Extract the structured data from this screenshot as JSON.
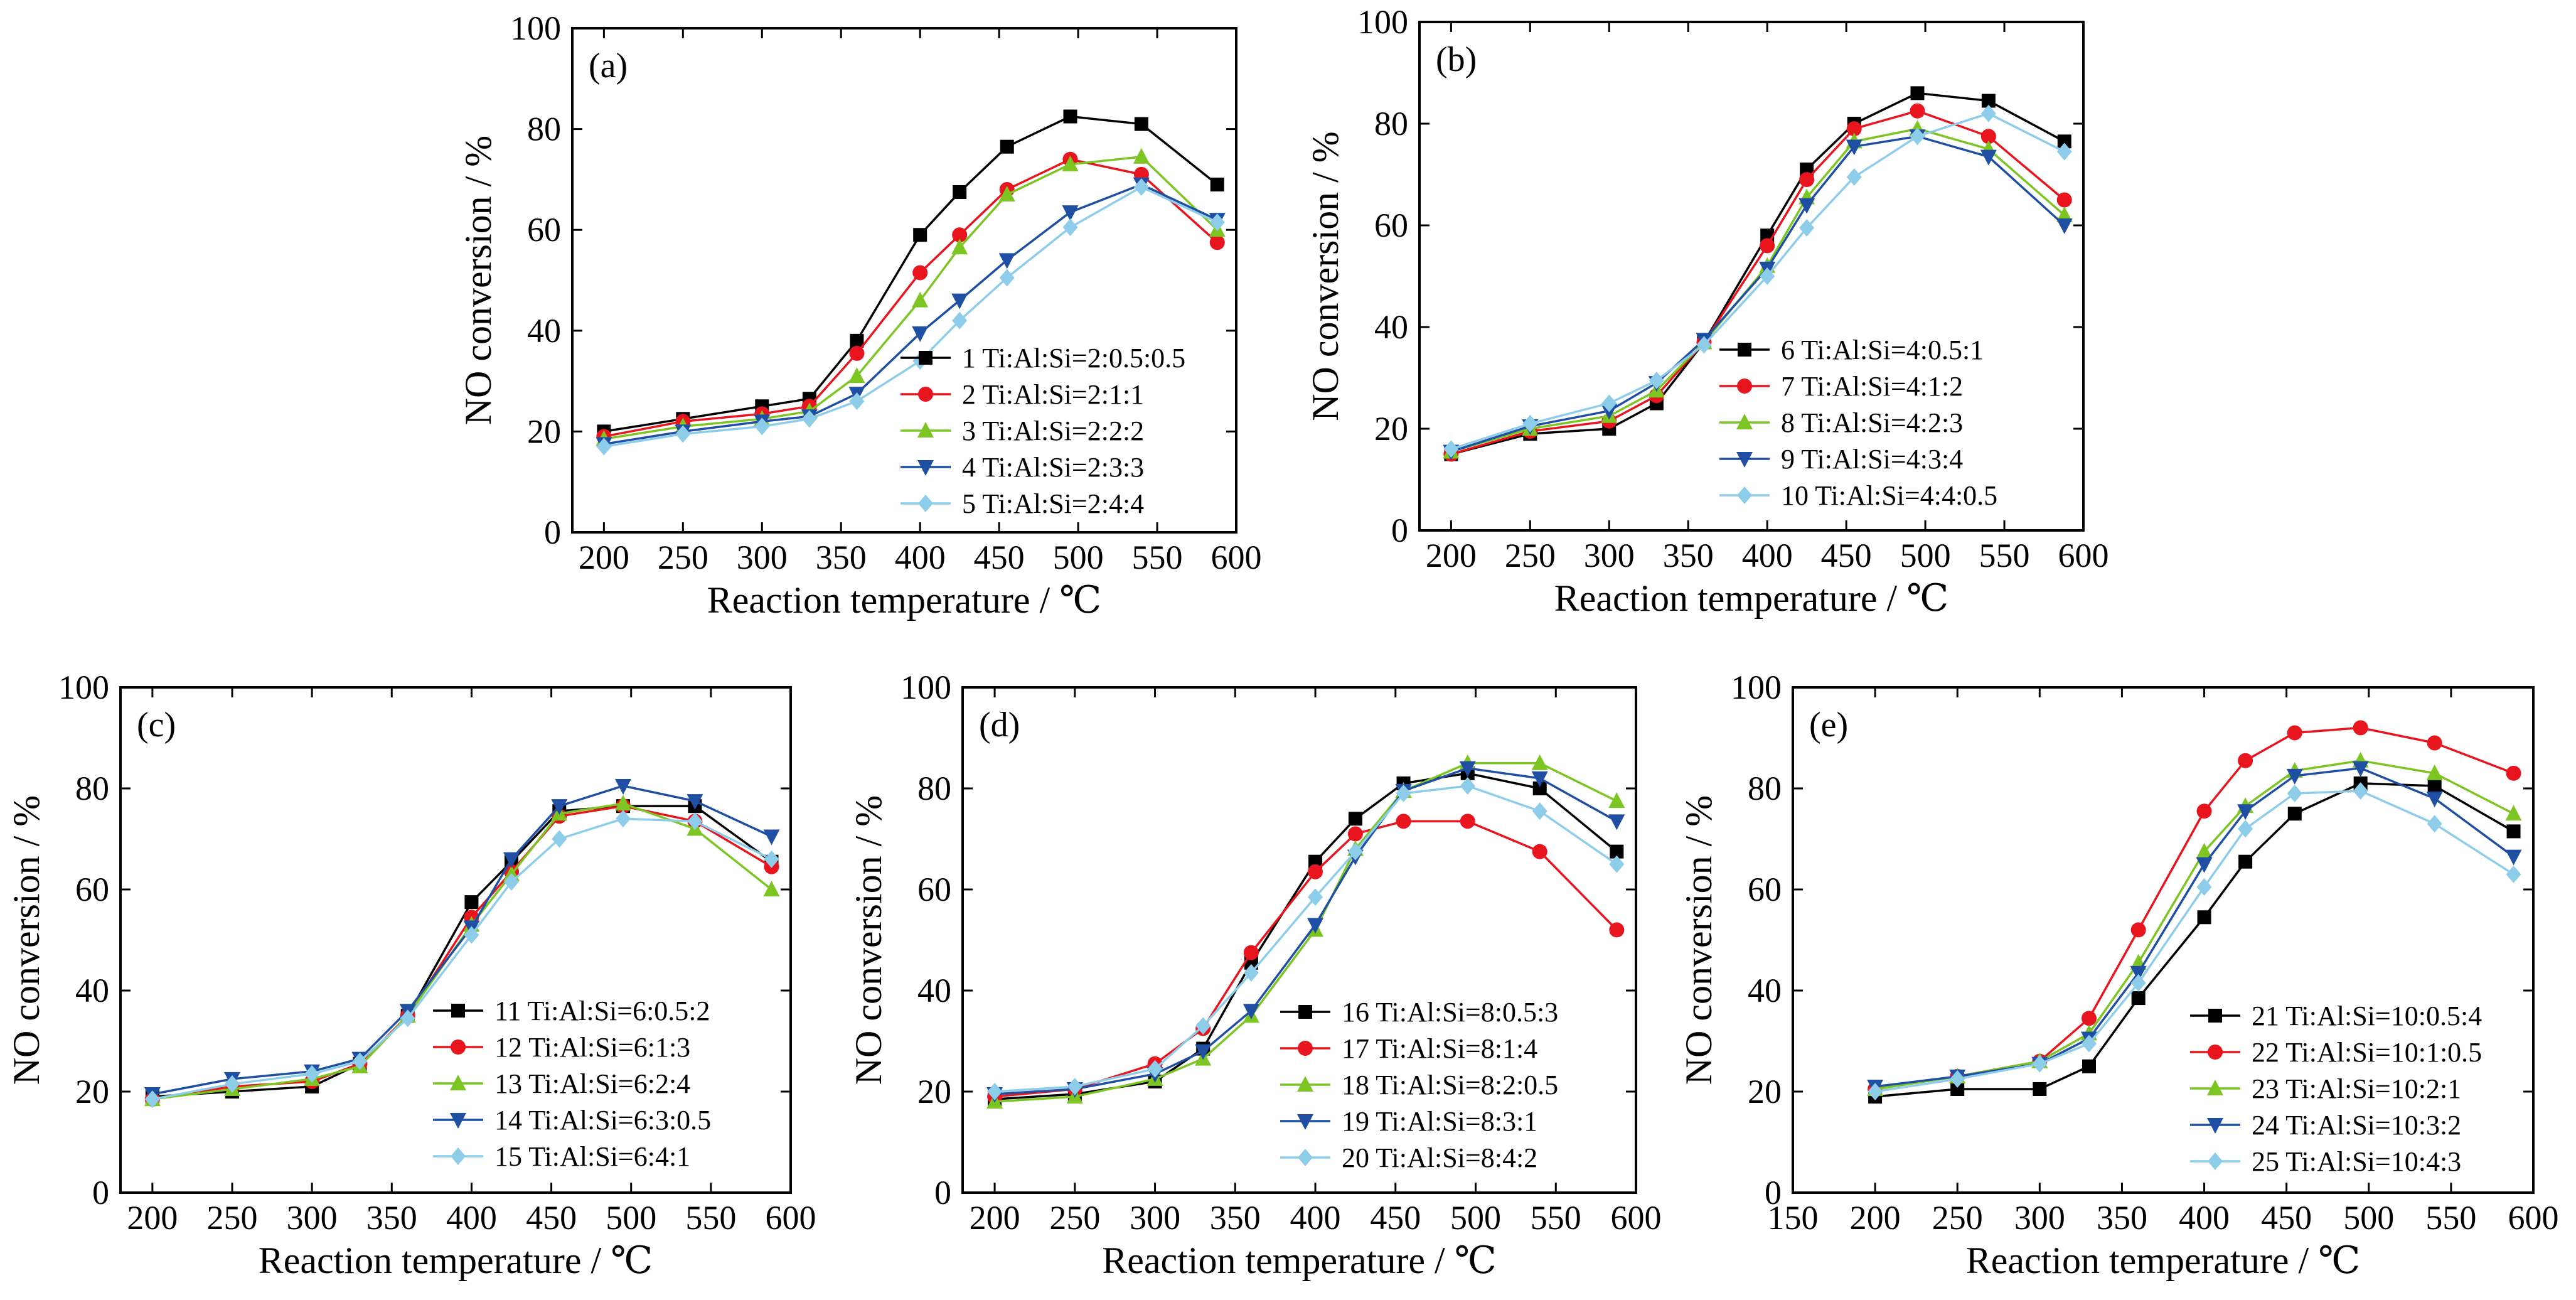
{
  "figure": {
    "panel_label_visible": true
  },
  "chart_data": [
    {
      "panel_tag": "(a)",
      "type": "line",
      "xlabel": "Reaction temperature / ℃",
      "ylabel": "NO conversion / %",
      "xlim": [
        180,
        600
      ],
      "ylim": [
        0,
        100
      ],
      "xticks": [
        200,
        250,
        300,
        350,
        400,
        450,
        500,
        550,
        600
      ],
      "yticks": [
        0,
        20,
        40,
        60,
        80,
        100
      ],
      "legend_position": "middle-right",
      "series": [
        {
          "name": "1 Ti:Al:Si=2:0.5:0.5",
          "color": "#000000",
          "marker": "square",
          "x": [
            200,
            250,
            300,
            330,
            360,
            400,
            425,
            455,
            495,
            540,
            588
          ],
          "y": [
            20.0,
            22.5,
            25.0,
            26.5,
            38.0,
            59.0,
            67.5,
            76.5,
            82.5,
            81.0,
            69.0
          ]
        },
        {
          "name": "2 Ti:Al:Si=2:1:1",
          "color": "#e8141e",
          "marker": "circle",
          "x": [
            200,
            250,
            300,
            330,
            360,
            400,
            425,
            455,
            495,
            540,
            588
          ],
          "y": [
            19.0,
            22.0,
            23.5,
            25.0,
            35.5,
            51.5,
            59.0,
            68.0,
            74.0,
            71.0,
            57.5
          ]
        },
        {
          "name": "3 Ti:Al:Si=2:2:2",
          "color": "#7cc522",
          "marker": "triangle-up",
          "x": [
            200,
            250,
            300,
            330,
            360,
            400,
            425,
            455,
            495,
            540,
            588
          ],
          "y": [
            18.5,
            21.0,
            22.5,
            24.0,
            31.0,
            46.0,
            56.5,
            67.0,
            73.0,
            74.5,
            60.0
          ]
        },
        {
          "name": "4 Ti:Al:Si=2:3:3",
          "color": "#1f4fa3",
          "marker": "triangle-down",
          "x": [
            200,
            250,
            300,
            330,
            360,
            400,
            425,
            455,
            495,
            540,
            588
          ],
          "y": [
            17.5,
            20.0,
            22.0,
            23.0,
            27.5,
            39.5,
            46.0,
            54.0,
            63.5,
            69.0,
            62.0
          ]
        },
        {
          "name": "5 Ti:Al:Si=2:4:4",
          "color": "#8ecdea",
          "marker": "diamond",
          "x": [
            200,
            250,
            300,
            330,
            360,
            400,
            425,
            455,
            495,
            540,
            588
          ],
          "y": [
            17.0,
            19.5,
            21.0,
            22.5,
            26.0,
            34.0,
            42.0,
            50.5,
            60.5,
            68.5,
            61.5
          ]
        }
      ]
    },
    {
      "panel_tag": "(b)",
      "type": "line",
      "xlabel": "Reaction temperature / ℃",
      "ylabel": "NO conversion / %",
      "xlim": [
        180,
        600
      ],
      "ylim": [
        0,
        100
      ],
      "xticks": [
        200,
        250,
        300,
        350,
        400,
        450,
        500,
        550,
        600
      ],
      "yticks": [
        0,
        20,
        40,
        60,
        80,
        100
      ],
      "legend_position": "bottom-right",
      "series": [
        {
          "name": "6 Ti:Al:Si=4:0.5:1",
          "color": "#000000",
          "marker": "square",
          "x": [
            200,
            250,
            300,
            330,
            360,
            400,
            425,
            455,
            495,
            540,
            588
          ],
          "y": [
            15.0,
            19.0,
            20.0,
            25.0,
            37.0,
            58.0,
            71.0,
            80.0,
            86.0,
            84.5,
            76.5
          ]
        },
        {
          "name": "7 Ti:Al:Si=4:1:2",
          "color": "#e8141e",
          "marker": "circle",
          "x": [
            200,
            250,
            300,
            330,
            360,
            400,
            425,
            455,
            495,
            540,
            588
          ],
          "y": [
            15.0,
            19.5,
            21.5,
            26.5,
            37.0,
            56.0,
            69.0,
            79.0,
            82.5,
            77.5,
            65.0
          ]
        },
        {
          "name": "8 Ti:Al:Si=4:2:3",
          "color": "#7cc522",
          "marker": "triangle-up",
          "x": [
            200,
            250,
            300,
            330,
            360,
            400,
            425,
            455,
            495,
            540,
            588
          ],
          "y": [
            15.5,
            20.0,
            22.5,
            27.5,
            37.0,
            52.0,
            65.5,
            76.5,
            79.0,
            75.0,
            62.0
          ]
        },
        {
          "name": "9 Ti:Al:Si=4:3:4",
          "color": "#1f4fa3",
          "marker": "triangle-down",
          "x": [
            200,
            250,
            300,
            330,
            360,
            400,
            425,
            455,
            495,
            540,
            588
          ],
          "y": [
            15.5,
            20.5,
            23.5,
            29.0,
            37.5,
            51.5,
            64.0,
            75.5,
            77.5,
            73.5,
            60.0
          ]
        },
        {
          "name": "10 Ti:Al:Si=4:4:0.5",
          "color": "#8ecdea",
          "marker": "diamond",
          "x": [
            200,
            250,
            300,
            330,
            360,
            400,
            425,
            455,
            495,
            540,
            588
          ],
          "y": [
            16.0,
            21.0,
            25.0,
            29.5,
            36.5,
            50.0,
            59.5,
            69.5,
            77.5,
            82.0,
            74.5
          ]
        }
      ]
    },
    {
      "panel_tag": "(c)",
      "type": "line",
      "xlabel": "Reaction temperature / ℃",
      "ylabel": "NO conversion / %",
      "xlim": [
        180,
        600
      ],
      "ylim": [
        0,
        100
      ],
      "xticks": [
        200,
        250,
        300,
        350,
        400,
        450,
        500,
        550,
        600
      ],
      "yticks": [
        0,
        20,
        40,
        60,
        80,
        100
      ],
      "legend_position": "bottom-right",
      "series": [
        {
          "name": "11 Ti:Al:Si=6:0.5:2",
          "color": "#000000",
          "marker": "square",
          "x": [
            200,
            250,
            300,
            330,
            360,
            400,
            425,
            455,
            495,
            540,
            588
          ],
          "y": [
            19.0,
            20.0,
            21.0,
            25.5,
            35.0,
            57.5,
            65.5,
            75.5,
            76.5,
            76.5,
            65.5
          ]
        },
        {
          "name": "12 Ti:Al:Si=6:1:3",
          "color": "#e8141e",
          "marker": "circle",
          "x": [
            200,
            250,
            300,
            330,
            360,
            400,
            425,
            455,
            495,
            540,
            588
          ],
          "y": [
            18.5,
            21.0,
            22.0,
            25.5,
            35.0,
            54.5,
            63.5,
            74.5,
            76.5,
            73.5,
            64.5
          ]
        },
        {
          "name": "13 Ti:Al:Si=6:2:4",
          "color": "#7cc522",
          "marker": "triangle-up",
          "x": [
            200,
            250,
            300,
            330,
            360,
            400,
            425,
            455,
            495,
            540,
            588
          ],
          "y": [
            18.5,
            20.5,
            22.5,
            25.0,
            35.0,
            53.0,
            63.0,
            75.0,
            77.0,
            72.0,
            60.0
          ]
        },
        {
          "name": "14 Ti:Al:Si=6:3:0.5",
          "color": "#1f4fa3",
          "marker": "triangle-down",
          "x": [
            200,
            250,
            300,
            330,
            360,
            400,
            425,
            455,
            495,
            540,
            588
          ],
          "y": [
            19.5,
            22.5,
            24.0,
            26.5,
            36.0,
            52.5,
            66.0,
            76.5,
            80.5,
            77.5,
            70.5
          ]
        },
        {
          "name": "15 Ti:Al:Si=6:4:1",
          "color": "#8ecdea",
          "marker": "diamond",
          "x": [
            200,
            250,
            300,
            330,
            360,
            400,
            425,
            455,
            495,
            540,
            588
          ],
          "y": [
            18.5,
            21.5,
            23.5,
            26.0,
            34.5,
            51.0,
            61.5,
            70.0,
            74.0,
            73.5,
            66.0
          ]
        }
      ]
    },
    {
      "panel_tag": "(d)",
      "type": "line",
      "xlabel": "Reaction temperature / ℃",
      "ylabel": "NO conversion / %",
      "xlim": [
        180,
        600
      ],
      "ylim": [
        0,
        100
      ],
      "xticks": [
        200,
        250,
        300,
        350,
        400,
        450,
        500,
        550,
        600
      ],
      "yticks": [
        0,
        20,
        40,
        60,
        80,
        100
      ],
      "legend_position": "bottom-right",
      "series": [
        {
          "name": "16 Ti:Al:Si=8:0.5:3",
          "color": "#000000",
          "marker": "square",
          "x": [
            200,
            250,
            300,
            330,
            360,
            400,
            425,
            455,
            495,
            540,
            588
          ],
          "y": [
            18.5,
            19.5,
            22.0,
            28.5,
            45.5,
            65.5,
            74.0,
            81.0,
            83.0,
            80.0,
            67.5
          ]
        },
        {
          "name": "17 Ti:Al:Si=8:1:4",
          "color": "#e8141e",
          "marker": "circle",
          "x": [
            200,
            250,
            300,
            330,
            360,
            400,
            425,
            455,
            495,
            540,
            588
          ],
          "y": [
            19.0,
            20.5,
            25.5,
            32.5,
            47.5,
            63.5,
            71.0,
            73.5,
            73.5,
            67.5,
            52.0
          ]
        },
        {
          "name": "18 Ti:Al:Si=8:2:0.5",
          "color": "#7cc522",
          "marker": "triangle-up",
          "x": [
            200,
            250,
            300,
            330,
            360,
            400,
            425,
            455,
            495,
            540,
            588
          ],
          "y": [
            18.0,
            19.0,
            22.5,
            26.5,
            35.0,
            52.0,
            68.0,
            79.5,
            85.0,
            85.0,
            77.5
          ]
        },
        {
          "name": "19 Ti:Al:Si=8:3:1",
          "color": "#1f4fa3",
          "marker": "triangle-down",
          "x": [
            200,
            250,
            300,
            330,
            360,
            400,
            425,
            455,
            495,
            540,
            588
          ],
          "y": [
            19.5,
            20.5,
            23.5,
            28.0,
            36.0,
            53.0,
            66.5,
            79.5,
            84.0,
            82.0,
            73.5
          ]
        },
        {
          "name": "20 Ti:Al:Si=8:4:2",
          "color": "#8ecdea",
          "marker": "diamond",
          "x": [
            200,
            250,
            300,
            330,
            360,
            400,
            425,
            455,
            495,
            540,
            588
          ],
          "y": [
            20.0,
            21.0,
            24.5,
            33.0,
            43.5,
            58.5,
            67.5,
            79.0,
            80.5,
            75.5,
            65.0
          ]
        }
      ]
    },
    {
      "panel_tag": "(e)",
      "type": "line",
      "xlabel": "Reaction temperature / ℃",
      "ylabel": "NO conversion / %",
      "xlim": [
        150,
        600
      ],
      "ylim": [
        0,
        100
      ],
      "xticks": [
        150,
        200,
        250,
        300,
        350,
        400,
        450,
        500,
        550,
        600
      ],
      "yticks": [
        0,
        20,
        40,
        60,
        80,
        100
      ],
      "legend_position": "bottom-right",
      "series": [
        {
          "name": "21 Ti:Al:Si=10:0.5:4",
          "color": "#000000",
          "marker": "square",
          "x": [
            200,
            250,
            300,
            330,
            360,
            400,
            425,
            455,
            495,
            540,
            588
          ],
          "y": [
            19.0,
            20.5,
            20.5,
            25.0,
            38.5,
            54.5,
            65.5,
            75.0,
            81.0,
            80.5,
            71.5
          ]
        },
        {
          "name": "22 Ti:Al:Si=10:1:0.5",
          "color": "#e8141e",
          "marker": "circle",
          "x": [
            200,
            250,
            300,
            330,
            360,
            400,
            425,
            455,
            495,
            540,
            588
          ],
          "y": [
            20.5,
            23.0,
            26.0,
            34.5,
            52.0,
            75.5,
            85.5,
            91.0,
            92.0,
            89.0,
            83.0
          ]
        },
        {
          "name": "23 Ti:Al:Si=10:2:1",
          "color": "#7cc522",
          "marker": "triangle-up",
          "x": [
            200,
            250,
            300,
            330,
            360,
            400,
            425,
            455,
            495,
            540,
            588
          ],
          "y": [
            20.5,
            23.0,
            26.0,
            31.5,
            45.5,
            67.5,
            76.5,
            83.5,
            85.5,
            83.0,
            75.0
          ]
        },
        {
          "name": "24 Ti:Al:Si=10:3:2",
          "color": "#1f4fa3",
          "marker": "triangle-down",
          "x": [
            200,
            250,
            300,
            330,
            360,
            400,
            425,
            455,
            495,
            540,
            588
          ],
          "y": [
            21.0,
            23.0,
            25.5,
            30.5,
            43.5,
            65.0,
            75.5,
            82.5,
            84.0,
            78.0,
            66.5
          ]
        },
        {
          "name": "25 Ti:Al:Si=10:4:3",
          "color": "#8ecdea",
          "marker": "diamond",
          "x": [
            200,
            250,
            300,
            330,
            360,
            400,
            425,
            455,
            495,
            540,
            588
          ],
          "y": [
            20.0,
            22.5,
            25.5,
            29.5,
            41.5,
            60.5,
            72.0,
            79.0,
            79.5,
            73.0,
            63.0
          ]
        }
      ]
    }
  ]
}
